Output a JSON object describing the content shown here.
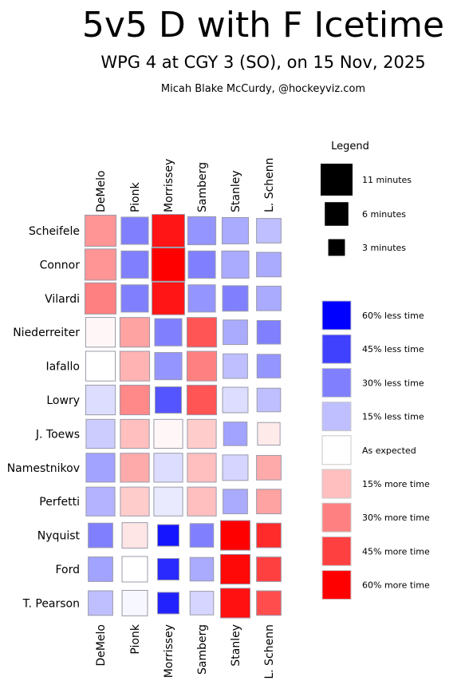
{
  "header": {
    "title": "5v5 D with F Icetime",
    "subtitle": "WPG 4 at CGY 3 (SO), on 15 Nov, 2025",
    "author": "Micah Blake McCurdy, @hockeyviz.com"
  },
  "legend": {
    "title": "Legend",
    "size_items": [
      {
        "label": "11 minutes",
        "minutes": 11
      },
      {
        "label": "6 minutes",
        "minutes": 6
      },
      {
        "label": "3 minutes",
        "minutes": 3
      }
    ],
    "color_items": [
      {
        "label": "60% less time",
        "value": -60
      },
      {
        "label": "45% less time",
        "value": -45
      },
      {
        "label": "30% less time",
        "value": -30
      },
      {
        "label": "15% less time",
        "value": -15
      },
      {
        "label": "As expected",
        "value": 0
      },
      {
        "label": "15% more time",
        "value": 15
      },
      {
        "label": "30% more time",
        "value": 30
      },
      {
        "label": "45% more time",
        "value": 45
      },
      {
        "label": "60% more time",
        "value": 60
      }
    ]
  },
  "chart_data": {
    "type": "heatmap",
    "title": "5v5 D with F Icetime",
    "columns": [
      "DeMelo",
      "Pionk",
      "Morrissey",
      "Samberg",
      "Stanley",
      "L. Schenn"
    ],
    "rows": [
      "Scheifele",
      "Connor",
      "Vilardi",
      "Niederreiter",
      "Iafallo",
      "Lowry",
      "J. Toews",
      "Namestnikov",
      "Perfetti",
      "Nyquist",
      "Ford",
      "T. Pearson"
    ],
    "minutes": [
      [
        10.5,
        8.0,
        11.5,
        8.5,
        7.5,
        6.5
      ],
      [
        10.5,
        8.0,
        12.0,
        8.0,
        8.0,
        6.5
      ],
      [
        10.5,
        8.0,
        11.5,
        8.0,
        7.0,
        6.5
      ],
      [
        9.5,
        9.5,
        8.0,
        9.5,
        6.5,
        6.0
      ],
      [
        9.5,
        9.5,
        8.0,
        9.5,
        6.5,
        6.0
      ],
      [
        9.5,
        9.5,
        7.5,
        9.5,
        7.0,
        6.0
      ],
      [
        9.0,
        9.0,
        9.0,
        9.0,
        6.0,
        5.5
      ],
      [
        9.0,
        9.0,
        9.0,
        9.0,
        7.0,
        6.5
      ],
      [
        9.0,
        9.0,
        9.0,
        9.0,
        6.5,
        6.5
      ],
      [
        6.5,
        7.0,
        5.0,
        6.0,
        9.5,
        6.5
      ],
      [
        6.5,
        7.0,
        5.0,
        6.0,
        9.5,
        6.5
      ],
      [
        6.5,
        7.0,
        5.0,
        6.0,
        9.5,
        6.5
      ]
    ],
    "relative_pct": [
      [
        25,
        -30,
        55,
        -25,
        -20,
        -15
      ],
      [
        25,
        -30,
        60,
        -30,
        -20,
        -20
      ],
      [
        30,
        -30,
        55,
        -25,
        -30,
        -20
      ],
      [
        2,
        22,
        -30,
        40,
        -20,
        -30
      ],
      [
        0,
        18,
        -25,
        30,
        -15,
        -25
      ],
      [
        -8,
        28,
        -40,
        40,
        -8,
        -15
      ],
      [
        -12,
        15,
        2,
        12,
        -22,
        5
      ],
      [
        -22,
        20,
        -8,
        15,
        -10,
        20
      ],
      [
        -18,
        12,
        -5,
        15,
        -20,
        22
      ],
      [
        -30,
        6,
        -55,
        -30,
        60,
        50
      ],
      [
        -22,
        0,
        -50,
        -20,
        58,
        45
      ],
      [
        -15,
        -2,
        -52,
        -10,
        56,
        42
      ]
    ]
  }
}
